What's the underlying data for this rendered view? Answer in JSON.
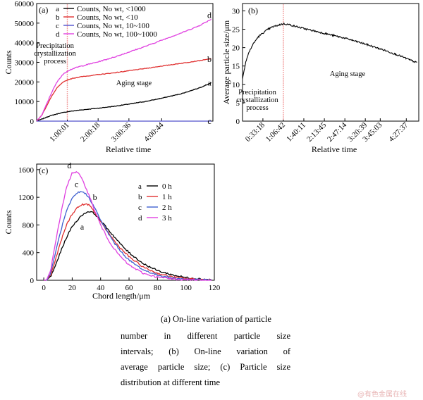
{
  "chart_data": [
    {
      "panel": "(a)",
      "type": "line",
      "xlabel": "Relative time",
      "ylabel": "Counts",
      "ylim": [
        0,
        60000
      ],
      "yticks": [
        "0",
        "10000",
        "20000",
        "30000",
        "40000",
        "50000",
        "60000"
      ],
      "xlim_seconds": [
        0,
        20700
      ],
      "xtick_values_seconds": [
        3601,
        7218,
        10836,
        14684
      ],
      "xticks": [
        "1:00:01",
        "2:00:18",
        "3:00:36",
        "4:00:44"
      ],
      "divider_x_seconds": 3601,
      "annotations": {
        "precipitation": "Precipitation crystallization process",
        "aging": "Aging stage"
      },
      "legend": [
        {
          "letter": "a",
          "label": "Counts, No wt, <1000",
          "color": "#000000"
        },
        {
          "letter": "b",
          "label": "Counts, No wt, <10",
          "color": "#e03030"
        },
        {
          "letter": "c",
          "label": "Counts, No wt, 10~100",
          "color": "#5050cc"
        },
        {
          "letter": "d",
          "label": "Counts, No wt, 100~1000",
          "color": "#e040e0"
        }
      ],
      "series": [
        {
          "letter": "a",
          "x": [
            0,
            600,
            1500,
            2500,
            3600,
            5000,
            7000,
            9000,
            11000,
            13000,
            15000,
            17000,
            19000,
            20500
          ],
          "values": [
            0,
            1000,
            2600,
            3800,
            4800,
            5600,
            6500,
            7500,
            8800,
            10200,
            12000,
            14000,
            16800,
            19500
          ]
        },
        {
          "letter": "b",
          "x": [
            0,
            600,
            1200,
            1800,
            2400,
            3000,
            3600,
            4200,
            5000,
            7000,
            9000,
            11000,
            13000,
            15000,
            17000,
            19000,
            20500
          ],
          "values": [
            0,
            3000,
            8000,
            13000,
            17000,
            19500,
            21000,
            21800,
            22500,
            23600,
            24600,
            25800,
            27000,
            28300,
            29500,
            30800,
            31800
          ]
        },
        {
          "letter": "c",
          "x": [
            0,
            20500
          ],
          "values": [
            0,
            0
          ]
        },
        {
          "letter": "d",
          "x": [
            0,
            600,
            1200,
            1800,
            2400,
            3000,
            3600,
            4200,
            5000,
            7000,
            9000,
            11000,
            13000,
            15000,
            17000,
            19000,
            20500
          ],
          "values": [
            0,
            3000,
            9000,
            15000,
            20000,
            23500,
            25500,
            26700,
            27800,
            30000,
            32500,
            35500,
            38500,
            41800,
            45000,
            48500,
            52000
          ]
        }
      ]
    },
    {
      "panel": "(b)",
      "type": "line",
      "xlabel": "Relative time",
      "ylabel": "Average particle size/μm",
      "ylim": [
        0,
        32
      ],
      "yticks": [
        "0",
        "5",
        "10",
        "15",
        "20",
        "25",
        "30"
      ],
      "xlim_seconds": [
        0,
        17280
      ],
      "xtick_values_seconds": [
        1998,
        4002,
        6011,
        8025,
        10034,
        12039,
        13503,
        16057
      ],
      "xticks": [
        "0:33:18",
        "1:06:42",
        "1:40:11",
        "2:13:45",
        "2:47:14",
        "3:20:39",
        "3:45:03",
        "4:27:37"
      ],
      "divider_x_seconds": 4002,
      "annotations": {
        "precipitation": "Precipitation crystallization process",
        "aging": "Aging stage"
      },
      "series": [
        {
          "x": [
            0,
            300,
            600,
            1000,
            1500,
            2000,
            2500,
            3000,
            3500,
            4000,
            4500,
            6000,
            8000,
            10000,
            12000,
            14000,
            15500,
            16800,
            17100
          ],
          "values": [
            11.5,
            16,
            18.5,
            20.8,
            22.8,
            24,
            25,
            25.7,
            26.1,
            26.5,
            26.3,
            25.2,
            23.9,
            22.6,
            21,
            19.2,
            17.7,
            16.2,
            15.9
          ]
        }
      ]
    },
    {
      "panel": "(c)",
      "type": "line",
      "xlabel": "Chord length/μm",
      "ylabel": "Counts",
      "xlim": [
        -5,
        120
      ],
      "ylim": [
        0,
        1680
      ],
      "xticks": [
        "0",
        "20",
        "40",
        "60",
        "80",
        "100",
        "120"
      ],
      "yticks": [
        "0",
        "400",
        "800",
        "1200",
        "1600"
      ],
      "legend": [
        {
          "letter": "a",
          "label": "0 h",
          "color": "#000000"
        },
        {
          "letter": "b",
          "label": "1 h",
          "color": "#e03030"
        },
        {
          "letter": "c",
          "label": "2 h",
          "color": "#4060d0"
        },
        {
          "letter": "d",
          "label": "3 h",
          "color": "#e040e0"
        }
      ],
      "series": [
        {
          "letter": "a",
          "x": [
            0,
            2,
            5,
            8,
            12,
            16,
            20,
            24,
            28,
            32,
            36,
            40,
            45,
            50,
            55,
            60,
            70,
            80,
            90,
            100,
            110,
            118
          ],
          "values": [
            0,
            0,
            60,
            200,
            420,
            620,
            780,
            880,
            960,
            1000,
            960,
            860,
            740,
            620,
            500,
            400,
            240,
            140,
            80,
            40,
            20,
            10
          ]
        },
        {
          "letter": "b",
          "x": [
            0,
            2,
            5,
            8,
            12,
            16,
            20,
            24,
            28,
            32,
            36,
            40,
            45,
            50,
            55,
            60,
            70,
            80,
            90,
            100,
            110,
            118
          ],
          "values": [
            0,
            0,
            80,
            280,
            560,
            800,
            960,
            1060,
            1100,
            1090,
            980,
            840,
            700,
            560,
            440,
            340,
            190,
            100,
            50,
            25,
            12,
            5
          ]
        },
        {
          "letter": "c",
          "x": [
            0,
            2,
            5,
            8,
            12,
            16,
            20,
            24,
            28,
            32,
            36,
            40,
            45,
            50,
            55,
            60,
            70,
            80,
            90,
            100,
            110,
            118
          ],
          "values": [
            0,
            0,
            110,
            380,
            720,
            1000,
            1180,
            1270,
            1280,
            1190,
            1040,
            870,
            690,
            530,
            400,
            290,
            150,
            75,
            35,
            15,
            8,
            3
          ]
        },
        {
          "letter": "d",
          "x": [
            0,
            2,
            5,
            8,
            12,
            16,
            20,
            24,
            28,
            32,
            36,
            40,
            45,
            50,
            55,
            60,
            70,
            80,
            90,
            100,
            110,
            118
          ],
          "values": [
            0,
            0,
            160,
            520,
            960,
            1340,
            1560,
            1560,
            1420,
            1220,
            1000,
            800,
            600,
            440,
            320,
            220,
            100,
            45,
            20,
            8,
            4,
            1
          ]
        }
      ]
    }
  ],
  "captions": {
    "line1": "(a) On-line variation of particle",
    "line2": "number in different particle size",
    "line3": "intervals; (b) On-line variation of",
    "line4": "average particle size; (c) Particle size",
    "line5": "distribution at different time"
  },
  "watermark": "@有色金属在线"
}
